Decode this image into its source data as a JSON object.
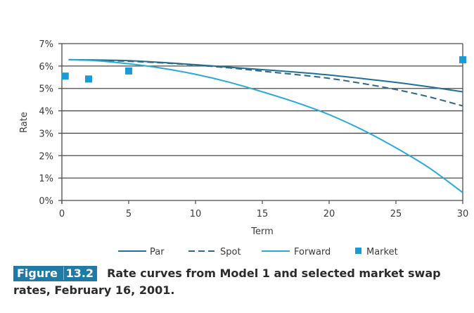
{
  "chart_data": {
    "type": "line",
    "title": "",
    "xlabel": "Term",
    "ylabel": "Rate",
    "xlim": [
      0,
      30
    ],
    "ylim": [
      0,
      7
    ],
    "xticks": [
      "0",
      "5",
      "10",
      "15",
      "20",
      "25",
      "30"
    ],
    "xtick_values": [
      0,
      5,
      10,
      15,
      20,
      25,
      30
    ],
    "yticks": [
      "0%",
      "1%",
      "2%",
      "3%",
      "4%",
      "5%",
      "6%",
      "7%"
    ],
    "ytick_values": [
      0,
      1,
      2,
      3,
      4,
      5,
      6,
      7
    ],
    "grid": "horizontal",
    "legend_position": "bottom",
    "series": [
      {
        "name": "Par",
        "style": "solid",
        "color": "#1f6f99",
        "x": [
          0.5,
          2.5,
          5,
          7.5,
          10,
          12.5,
          15,
          17.5,
          20,
          22.5,
          25,
          27.5,
          30
        ],
        "values": [
          6.28,
          6.27,
          6.24,
          6.16,
          6.06,
          5.95,
          5.84,
          5.73,
          5.6,
          5.44,
          5.27,
          5.07,
          4.85
        ]
      },
      {
        "name": "Spot",
        "style": "dashed",
        "color": "#2e6784",
        "x": [
          0.5,
          2.5,
          5,
          7.5,
          10,
          12.5,
          15,
          17.5,
          20,
          22.5,
          25,
          27.5,
          30
        ],
        "values": [
          6.28,
          6.26,
          6.21,
          6.14,
          6.04,
          5.92,
          5.77,
          5.62,
          5.45,
          5.22,
          4.95,
          4.62,
          4.22
        ]
      },
      {
        "name": "Forward",
        "style": "solid",
        "color": "#29a9d6",
        "x": [
          0.5,
          2.5,
          5,
          7.5,
          10,
          12.5,
          15,
          17.5,
          20,
          22.5,
          25,
          27.5,
          30
        ],
        "values": [
          6.28,
          6.24,
          6.1,
          5.9,
          5.63,
          5.28,
          4.85,
          4.38,
          3.83,
          3.15,
          2.35,
          1.45,
          0.35
        ]
      },
      {
        "name": "Market",
        "style": "marker",
        "color": "#1a9ad6",
        "x": [
          0.25,
          2,
          5,
          30
        ],
        "values": [
          5.55,
          5.42,
          5.78,
          6.28
        ]
      }
    ]
  },
  "caption": {
    "figure_word": "Figure",
    "figure_number": "13.2",
    "text": "Rate curves from Model 1 and selected market swap rates, February 16, 2001."
  },
  "colors": {
    "badge": "#1f7aa6",
    "grid": "#4a4a4a"
  }
}
